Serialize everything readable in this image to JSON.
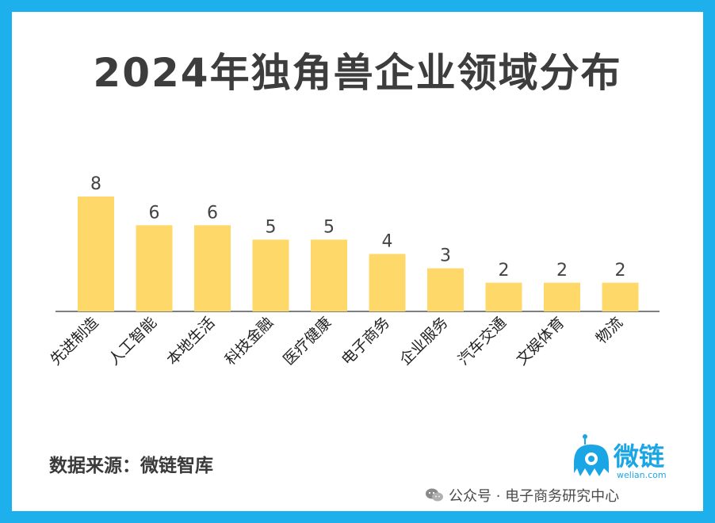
{
  "title": "2024年独角兽企业领域分布",
  "chart_data": {
    "type": "bar",
    "categories": [
      "先进制造",
      "人工智能",
      "本地生活",
      "科技金融",
      "医疗健康",
      "电子商务",
      "企业服务",
      "汽车交通",
      "文娱体育",
      "物流"
    ],
    "values": [
      8,
      6,
      6,
      5,
      5,
      4,
      3,
      2,
      2,
      2
    ],
    "ylim": [
      0,
      8
    ],
    "grid": false,
    "bar_color": "#fed96a"
  },
  "source": "数据来源：微链智库",
  "logo": {
    "name": "微链",
    "domain": "welian.com",
    "icon": "octopus-mascot-icon",
    "color": "#1aa6e4"
  },
  "watermark": {
    "icon": "wechat-icon",
    "text": "公众号 · 电子商务研究中心"
  },
  "colors": {
    "frame": "#1eb0ec",
    "title": "#3d3d3d",
    "axis": "#333333"
  }
}
